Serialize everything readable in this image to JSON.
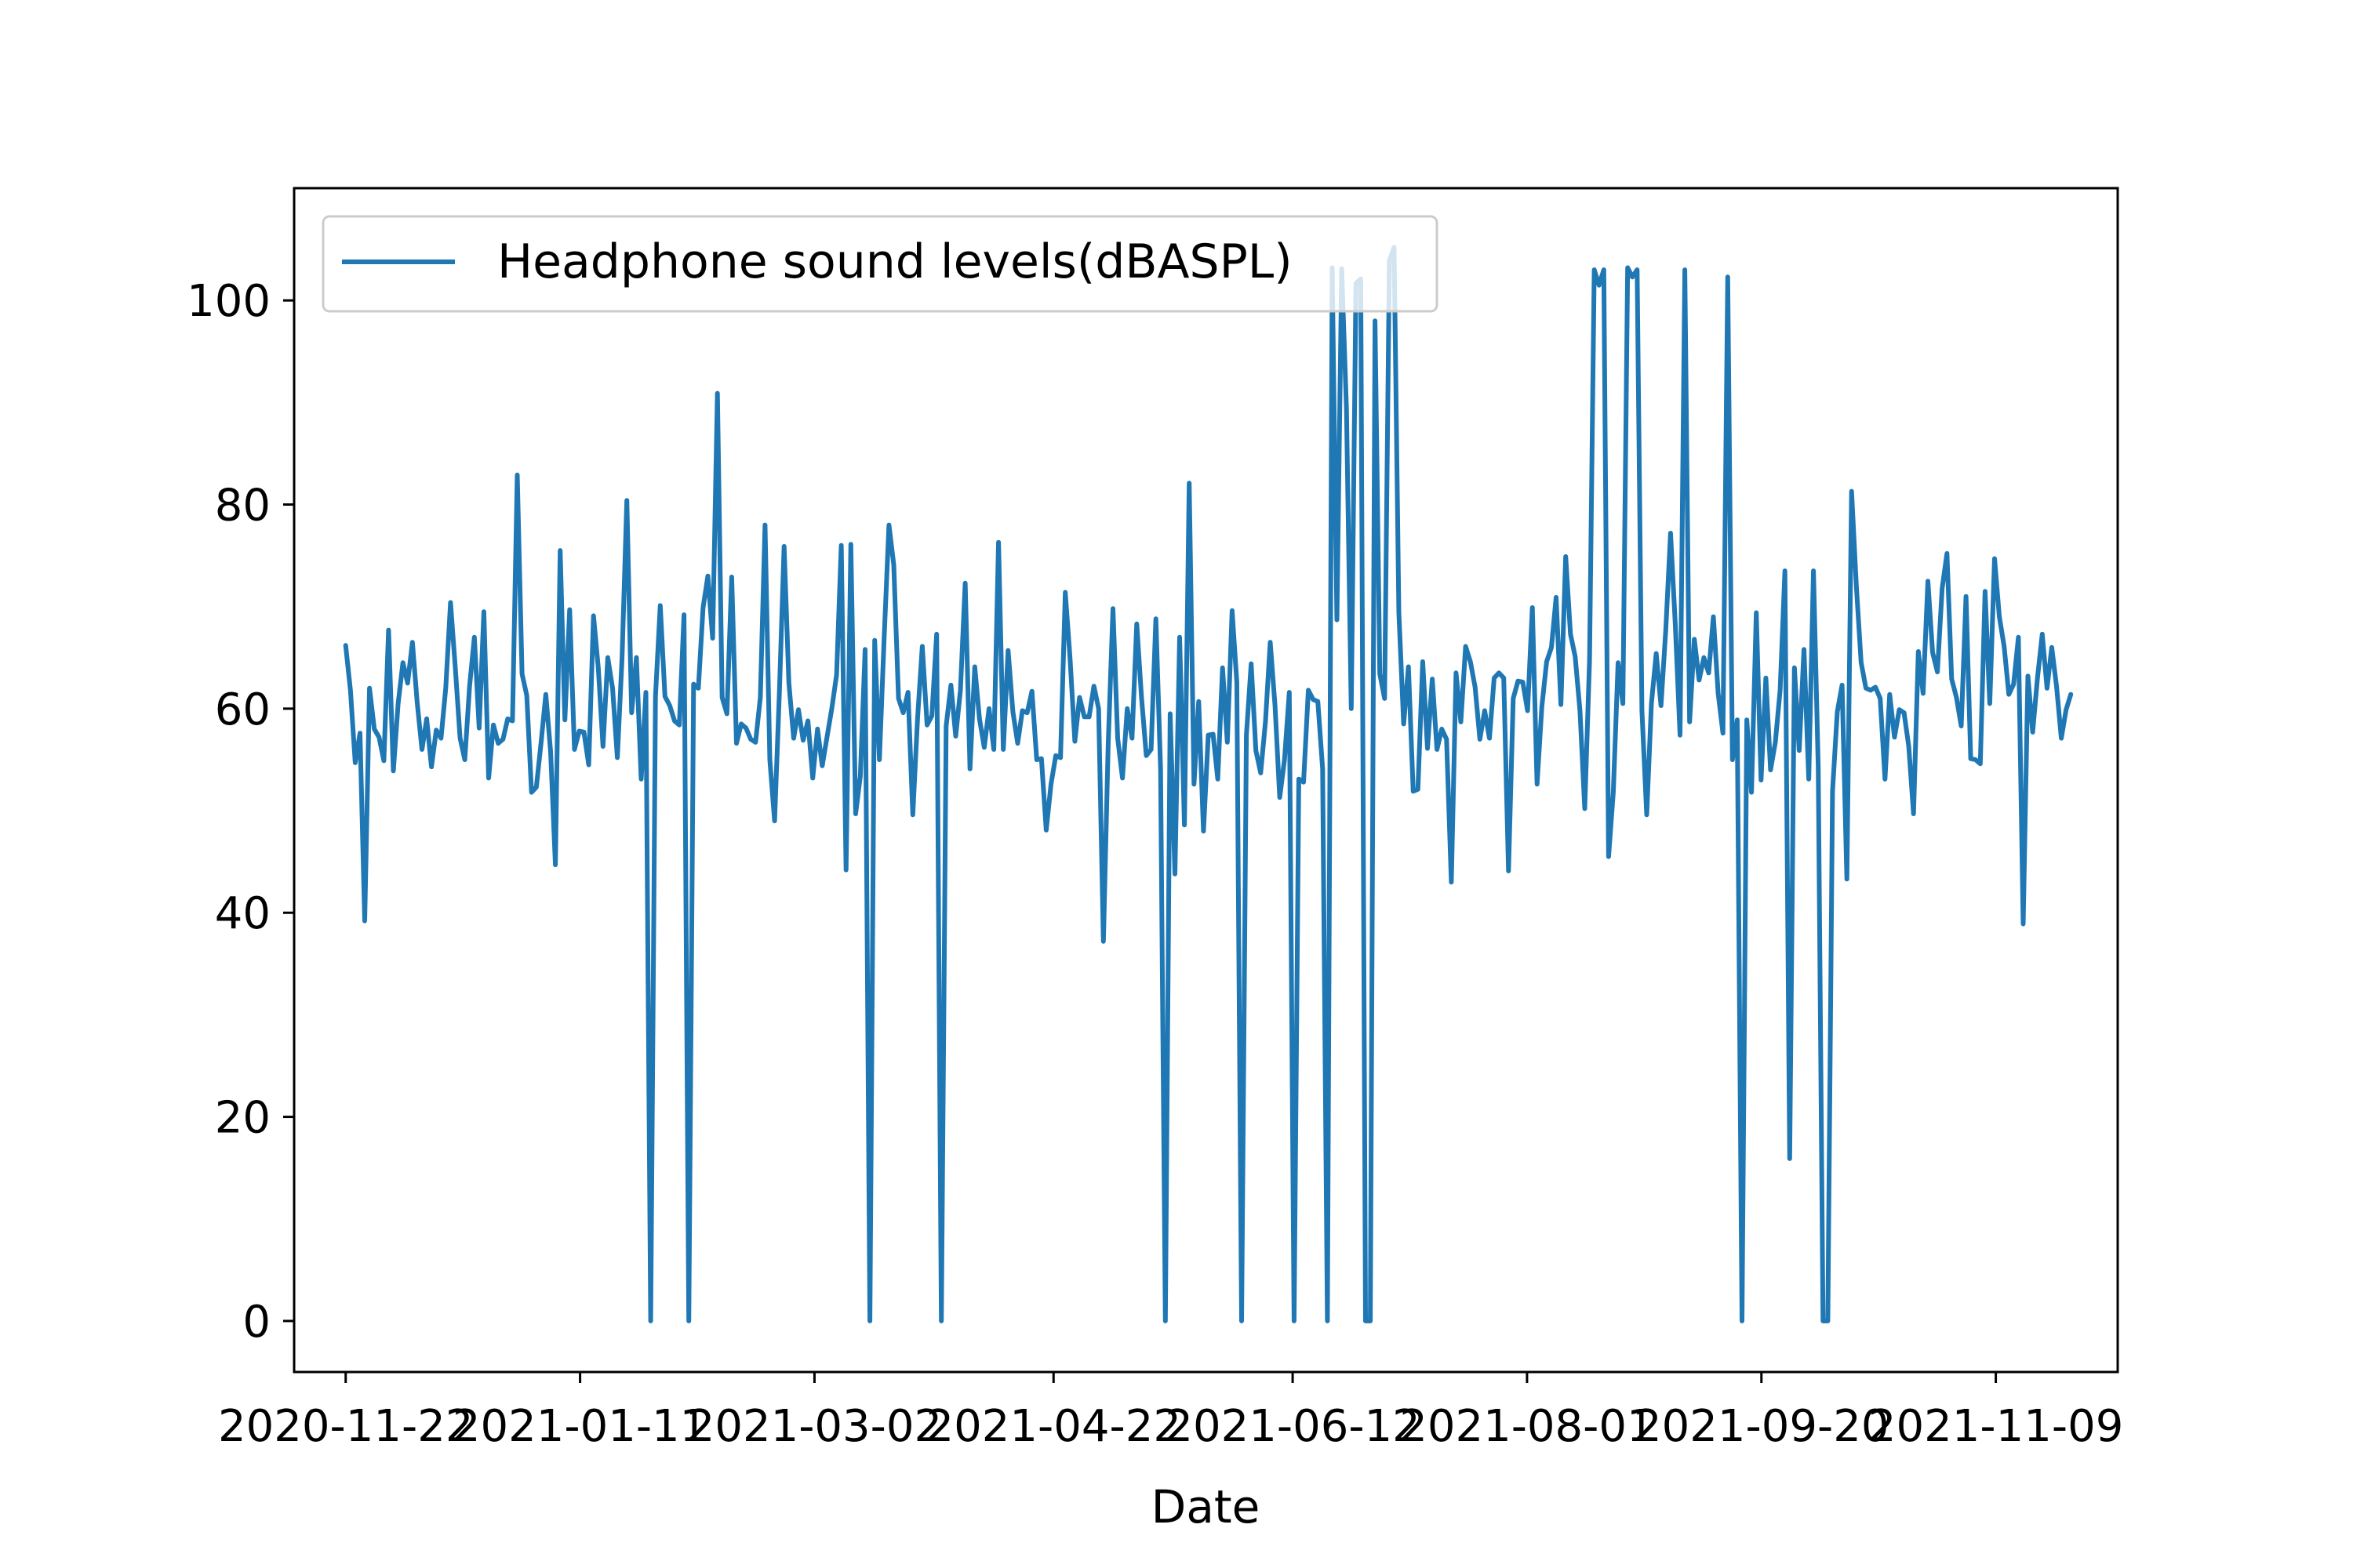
{
  "chart_data": {
    "type": "line",
    "title": "",
    "xlabel": "Date",
    "ylabel": "",
    "x_start": "2020-11-22",
    "x_end": "2021-11-25",
    "xlim": [
      "2020-11-11",
      "2021-12-05"
    ],
    "ylim": [
      -5,
      111
    ],
    "grid": false,
    "legend_position": "upper-left",
    "x_ticks": [
      "2020-11-22",
      "2021-01-11",
      "2021-03-02",
      "2021-04-22",
      "2021-06-12",
      "2021-08-01",
      "2021-09-20",
      "2021-11-09"
    ],
    "y_ticks": [
      0,
      20,
      40,
      60,
      80,
      100
    ],
    "series": [
      {
        "name": "Headphone sound levels(dBASPL)",
        "color": "#1f77b4",
        "values": [
          66.2,
          61.8,
          54.7,
          57.6,
          39.2,
          62.0,
          58.0,
          57.2,
          54.9,
          67.7,
          53.9,
          60.5,
          64.5,
          62.5,
          66.5,
          60.6,
          56.0,
          59.0,
          54.3,
          57.9,
          57.1,
          62.0,
          70.4,
          64.0,
          57.1,
          55.0,
          62.2,
          67.0,
          58.1,
          69.5,
          53.2,
          58.4,
          56.6,
          57.0,
          59.0,
          58.8,
          82.9,
          63.4,
          61.3,
          51.8,
          52.3,
          56.7,
          61.4,
          55.8,
          44.7,
          75.5,
          58.9,
          69.7,
          56.0,
          57.8,
          57.7,
          54.5,
          69.1,
          64.0,
          56.3,
          65.0,
          62.0,
          55.2,
          65.0,
          80.4,
          59.6,
          65.0,
          53.1,
          61.6,
          0.0,
          61.2,
          70.1,
          61.2,
          60.3,
          58.8,
          58.4,
          69.2,
          0.0,
          62.4,
          62.0,
          69.9,
          73.0,
          66.9,
          90.9,
          61.1,
          59.5,
          72.9,
          56.6,
          58.5,
          58.1,
          57.0,
          56.7,
          61.1,
          78.0,
          55.0,
          49.0,
          61.6,
          75.9,
          62.5,
          57.1,
          59.9,
          56.9,
          58.8,
          53.2,
          58.0,
          54.4,
          57.2,
          60.0,
          63.3,
          76.0,
          44.2,
          76.1,
          49.7,
          53.4,
          65.8,
          0.0,
          66.7,
          55.0,
          67.0,
          78.0,
          74.1,
          61.0,
          59.6,
          61.6,
          49.6,
          59.1,
          66.1,
          58.4,
          59.3,
          67.3,
          0.0,
          58.3,
          62.3,
          57.3,
          61.8,
          72.3,
          54.1,
          64.1,
          59.0,
          56.2,
          60.0,
          56.0,
          76.3,
          56.0,
          65.7,
          59.7,
          56.6,
          59.8,
          59.6,
          61.7,
          55.0,
          55.1,
          48.1,
          52.6,
          55.4,
          55.2,
          71.4,
          64.9,
          56.8,
          61.1,
          59.2,
          59.2,
          62.2,
          60.0,
          37.2,
          56.5,
          69.8,
          57.1,
          53.2,
          60.0,
          57.1,
          68.3,
          61.1,
          55.4,
          56.0,
          68.8,
          54.1,
          0.0,
          59.5,
          43.8,
          67.0,
          48.6,
          82.1,
          52.6,
          60.7,
          48.0,
          57.4,
          57.5,
          53.1,
          64.0,
          56.7,
          69.6,
          62.6,
          0.0,
          57.4,
          64.4,
          55.9,
          53.7,
          58.7,
          66.5,
          60.3,
          51.3,
          55.0,
          61.6,
          0.0,
          53.1,
          52.8,
          61.8,
          60.9,
          60.7,
          54.1,
          0.0,
          103.2,
          68.7,
          103.1,
          89.4,
          60.0,
          101.7,
          102.1,
          0.0,
          0.0,
          98.0,
          63.4,
          61.0,
          103.9,
          105.2,
          69.4,
          58.5,
          64.1,
          51.9,
          52.1,
          64.6,
          56.1,
          62.9,
          56.0,
          58.0,
          57.0,
          43.0,
          63.5,
          58.7,
          66.1,
          64.6,
          62.1,
          57.0,
          59.8,
          57.1,
          63.0,
          63.5,
          63.0,
          44.1,
          61.0,
          62.7,
          62.6,
          59.8,
          69.9,
          52.6,
          60.2,
          64.6,
          66.0,
          70.9,
          60.4,
          74.9,
          67.3,
          65.1,
          59.8,
          50.2,
          64.7,
          103.0,
          101.5,
          103.0,
          45.5,
          51.8,
          64.5,
          60.5,
          103.2,
          102.3,
          103.0,
          59.8,
          49.6,
          60.5,
          65.4,
          60.3,
          67.7,
          77.2,
          68.3,
          57.4,
          103.0,
          58.7,
          66.8,
          62.8,
          65.0,
          63.5,
          69.0,
          61.5,
          57.6,
          102.3,
          55.0,
          58.9,
          0.0,
          58.9,
          51.8,
          69.4,
          53.0,
          63.0,
          54.0,
          56.7,
          61.8,
          73.5,
          15.9,
          64.0,
          55.9,
          65.8,
          53.1,
          73.5,
          54.2,
          0.0,
          0.0,
          51.9,
          59.7,
          62.3,
          43.3,
          81.3,
          72.0,
          64.5,
          62.0,
          61.8,
          62.1,
          61.0,
          53.1,
          61.4,
          57.2,
          59.9,
          59.6,
          56.3,
          49.7,
          65.6,
          61.5,
          72.5,
          65.5,
          63.6,
          71.8,
          75.2,
          62.9,
          61.1,
          58.3,
          71.0,
          55.1,
          55.0,
          54.6,
          71.5,
          60.5,
          74.7,
          69.0,
          66.1,
          61.4,
          62.4,
          67.0,
          38.9,
          63.2,
          57.7,
          63.0,
          67.3,
          62.0,
          66.0,
          62.2,
          57.1,
          59.9,
          61.4
        ]
      }
    ]
  }
}
